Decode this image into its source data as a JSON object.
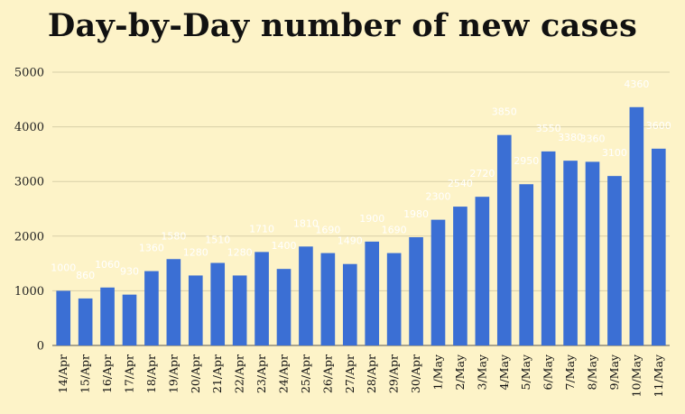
{
  "chart_data": {
    "type": "bar",
    "title": "Day-by-Day number of new cases",
    "xlabel": "",
    "ylabel": "",
    "ylim": [
      0,
      5000
    ],
    "yticks": [
      0,
      1000,
      2000,
      3000,
      4000,
      5000
    ],
    "grid": true,
    "bar_color": "#3b6fd4",
    "data_label_color": "#ffffff",
    "categories": [
      "14/Apr",
      "15/Apr",
      "16/Apr",
      "17/Apr",
      "18/Apr",
      "19/Apr",
      "20/Apr",
      "21/Apr",
      "22/Apr",
      "23/Apr",
      "24/Apr",
      "25/Apr",
      "26/Apr",
      "27/Apr",
      "28/Apr",
      "29/Apr",
      "30/Apr",
      "1/May",
      "2/May",
      "3/May",
      "4/May",
      "5/May",
      "6/May",
      "7/May",
      "8/May",
      "9/May",
      "10/May",
      "11/May"
    ],
    "values": [
      1000,
      860,
      1060,
      930,
      1360,
      1580,
      1280,
      1510,
      1280,
      1710,
      1400,
      1810,
      1690,
      1490,
      1900,
      1690,
      1980,
      2300,
      2540,
      2720,
      3850,
      2950,
      3550,
      3380,
      3360,
      3100,
      4360,
      3600
    ]
  }
}
